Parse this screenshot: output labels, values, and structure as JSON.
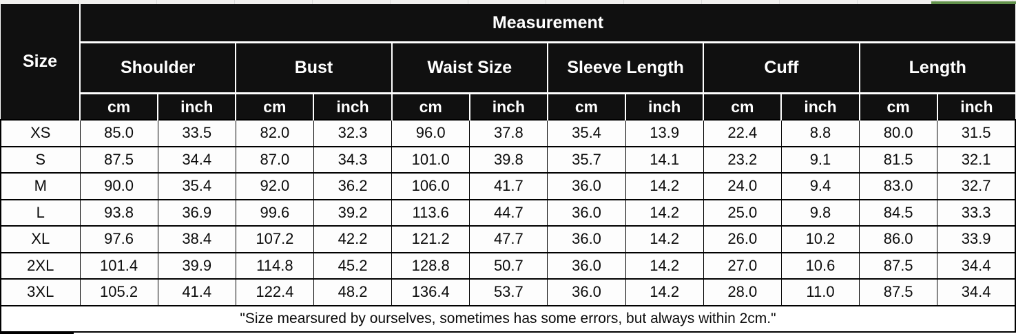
{
  "top_bar": {
    "green_accent_color": "#63924c",
    "strip_color": "#f1f0ee"
  },
  "table": {
    "size_header": "Size",
    "measurement_header": "Measurement",
    "groups": [
      {
        "label": "Shoulder",
        "units": [
          "cm",
          "inch"
        ]
      },
      {
        "label": "Bust",
        "units": [
          "cm",
          "inch"
        ]
      },
      {
        "label": "Waist Size",
        "units": [
          "cm",
          "inch"
        ]
      },
      {
        "label": "Sleeve Length",
        "units": [
          "cm",
          "inch"
        ]
      },
      {
        "label": "Cuff",
        "units": [
          "cm",
          "inch"
        ]
      },
      {
        "label": "Length",
        "units": [
          "cm",
          "inch"
        ]
      }
    ],
    "rows": [
      {
        "size": "XS",
        "values": [
          "85.0",
          "33.5",
          "82.0",
          "32.3",
          "96.0",
          "37.8",
          "35.4",
          "13.9",
          "22.4",
          "8.8",
          "80.0",
          "31.5"
        ]
      },
      {
        "size": "S",
        "values": [
          "87.5",
          "34.4",
          "87.0",
          "34.3",
          "101.0",
          "39.8",
          "35.7",
          "14.1",
          "23.2",
          "9.1",
          "81.5",
          "32.1"
        ]
      },
      {
        "size": "M",
        "values": [
          "90.0",
          "35.4",
          "92.0",
          "36.2",
          "106.0",
          "41.7",
          "36.0",
          "14.2",
          "24.0",
          "9.4",
          "83.0",
          "32.7"
        ]
      },
      {
        "size": "L",
        "values": [
          "93.8",
          "36.9",
          "99.6",
          "39.2",
          "113.6",
          "44.7",
          "36.0",
          "14.2",
          "25.0",
          "9.8",
          "84.5",
          "33.3"
        ]
      },
      {
        "size": "XL",
        "values": [
          "97.6",
          "38.4",
          "107.2",
          "42.2",
          "121.2",
          "47.7",
          "36.0",
          "14.2",
          "26.0",
          "10.2",
          "86.0",
          "33.9"
        ]
      },
      {
        "size": "2XL",
        "values": [
          "101.4",
          "39.9",
          "114.8",
          "45.2",
          "128.8",
          "50.7",
          "36.0",
          "14.2",
          "27.0",
          "10.6",
          "87.5",
          "34.4"
        ]
      },
      {
        "size": "3XL",
        "values": [
          "105.2",
          "41.4",
          "122.4",
          "48.2",
          "136.4",
          "53.7",
          "36.0",
          "14.2",
          "28.0",
          "11.0",
          "87.5",
          "34.4"
        ]
      }
    ],
    "footer_note": "\"Size mearsured by ourselves, sometimes has some errors, but always within 2cm.\""
  },
  "chart_data": {
    "type": "table",
    "title": "Measurement",
    "row_header": "Size",
    "columns": [
      "Shoulder cm",
      "Shoulder inch",
      "Bust cm",
      "Bust inch",
      "Waist Size cm",
      "Waist Size inch",
      "Sleeve Length cm",
      "Sleeve Length inch",
      "Cuff cm",
      "Cuff inch",
      "Length cm",
      "Length inch"
    ],
    "sizes": [
      "XS",
      "S",
      "M",
      "L",
      "XL",
      "2XL",
      "3XL"
    ],
    "values": [
      [
        85.0,
        33.5,
        82.0,
        32.3,
        96.0,
        37.8,
        35.4,
        13.9,
        22.4,
        8.8,
        80.0,
        31.5
      ],
      [
        87.5,
        34.4,
        87.0,
        34.3,
        101.0,
        39.8,
        35.7,
        14.1,
        23.2,
        9.1,
        81.5,
        32.1
      ],
      [
        90.0,
        35.4,
        92.0,
        36.2,
        106.0,
        41.7,
        36.0,
        14.2,
        24.0,
        9.4,
        83.0,
        32.7
      ],
      [
        93.8,
        36.9,
        99.6,
        39.2,
        113.6,
        44.7,
        36.0,
        14.2,
        25.0,
        9.8,
        84.5,
        33.3
      ],
      [
        97.6,
        38.4,
        107.2,
        42.2,
        121.2,
        47.7,
        36.0,
        14.2,
        26.0,
        10.2,
        86.0,
        33.9
      ],
      [
        101.4,
        39.9,
        114.8,
        45.2,
        128.8,
        50.7,
        36.0,
        14.2,
        27.0,
        10.6,
        87.5,
        34.4
      ],
      [
        105.2,
        41.4,
        122.4,
        48.2,
        136.4,
        53.7,
        36.0,
        14.2,
        28.0,
        11.0,
        87.5,
        34.4
      ]
    ],
    "note": "\"Size mearsured by ourselves, sometimes has some errors, but always within 2cm.\""
  }
}
